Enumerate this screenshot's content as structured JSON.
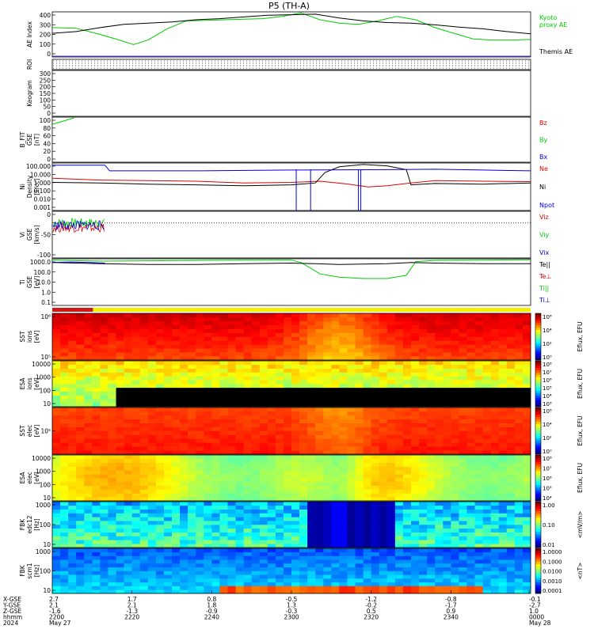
{
  "title": "P5 (TH-A)",
  "colors": {
    "black": "#000000",
    "green": "#00cc00",
    "red": "#dd0000",
    "blue": "#0000dd",
    "bar_red": "#d01818",
    "bar_yellow": "#f4f000"
  },
  "chart_data": [
    {
      "id": "ae",
      "type": "line",
      "ylabel": "AE Index",
      "ylim": [
        0,
        400
      ],
      "yticks": [
        "0",
        "100",
        "200",
        "300",
        "400"
      ],
      "legend": [
        {
          "label": "Kyoto\nproxy AE",
          "color": "#00cc00"
        },
        {
          "label": "Themis AE",
          "color": "#000000"
        }
      ],
      "series": [
        {
          "name": "Kyoto proxy AE",
          "color": "#00cc00",
          "x": [
            0,
            0.05,
            0.1,
            0.14,
            0.17,
            0.2,
            0.24,
            0.28,
            0.32,
            0.36,
            0.4,
            0.44,
            0.48,
            0.52,
            0.56,
            0.6,
            0.64,
            0.68,
            0.72,
            0.76,
            0.8,
            0.84,
            0.88,
            0.92,
            0.96,
            1
          ],
          "y": [
            260,
            255,
            200,
            150,
            110,
            150,
            250,
            320,
            325,
            330,
            335,
            340,
            360,
            390,
            330,
            300,
            290,
            320,
            360,
            330,
            260,
            210,
            160,
            150,
            150,
            155
          ]
        },
        {
          "name": "Themis AE",
          "color": "#000000",
          "x": [
            0,
            0.05,
            0.1,
            0.15,
            0.2,
            0.25,
            0.3,
            0.35,
            0.4,
            0.45,
            0.5,
            0.55,
            0.6,
            0.65,
            0.7,
            0.75,
            0.8,
            0.85,
            0.9,
            0.95,
            1
          ],
          "y": [
            210,
            225,
            260,
            290,
            300,
            310,
            330,
            340,
            355,
            370,
            375,
            380,
            345,
            320,
            305,
            300,
            285,
            265,
            250,
            225,
            205
          ]
        }
      ]
    },
    {
      "id": "roi",
      "type": "table",
      "ylabel": "ROI"
    },
    {
      "id": "keogram",
      "type": "line",
      "ylabel": "Keogram",
      "ylim": [
        0,
        300
      ],
      "yticks": [
        "0",
        "50",
        "100",
        "150",
        "200",
        "250",
        "300"
      ]
    },
    {
      "id": "bfit",
      "type": "line",
      "ylabel": "B_FIT\nGSE\n[nT]",
      "ylim": [
        0,
        100
      ],
      "yticks": [
        "0",
        "20",
        "40",
        "60",
        "80",
        "100"
      ],
      "legend": [
        {
          "label": "Bz",
          "color": "#dd0000"
        },
        {
          "label": "By",
          "color": "#00cc00"
        },
        {
          "label": "Bx",
          "color": "#0000dd"
        }
      ],
      "series": [
        {
          "name": "By",
          "color": "#00cc00",
          "x": [
            0,
            0.045
          ],
          "y": [
            84,
            98
          ]
        }
      ]
    },
    {
      "id": "density",
      "type": "line",
      "ylabel": "Ni\nDensity\n[1/cc]",
      "log": true,
      "ylim": [
        0.001,
        100
      ],
      "yticks": [
        "0.001",
        "0.010",
        "0.100",
        "1.000",
        "10.000",
        "100.000"
      ],
      "legend": [
        {
          "label": "Ne",
          "color": "#dd0000"
        },
        {
          "label": "Ni",
          "color": "#000000"
        },
        {
          "label": "Npot",
          "color": "#0000dd"
        }
      ],
      "series": [
        {
          "name": "Ne",
          "color": "#dd0000",
          "x": [
            0,
            0.1,
            0.2,
            0.3,
            0.4,
            0.5,
            0.56,
            0.62,
            0.66,
            0.7,
            0.75,
            0.8,
            0.9,
            1
          ],
          "y": [
            2.5,
            1.6,
            1.4,
            1.2,
            0.8,
            0.9,
            1.2,
            0.6,
            0.3,
            0.4,
            0.8,
            1.4,
            1.2,
            1.1
          ]
        },
        {
          "name": "Ni",
          "color": "#000000",
          "x": [
            0,
            0.1,
            0.2,
            0.3,
            0.4,
            0.5,
            0.55,
            0.57,
            0.6,
            0.65,
            0.7,
            0.74,
            0.75,
            0.8,
            0.9,
            1
          ],
          "y": [
            0.9,
            0.8,
            0.6,
            0.5,
            0.4,
            0.5,
            0.8,
            10,
            40,
            70,
            50,
            20,
            0.5,
            0.7,
            0.6,
            0.8
          ]
        },
        {
          "name": "Npot",
          "color": "#0000dd",
          "x": [
            0,
            0.11,
            0.12,
            0.3,
            0.5,
            0.7,
            0.8,
            0.9,
            1
          ],
          "y": [
            60,
            60,
            15,
            15,
            18,
            20,
            22,
            18,
            15
          ]
        }
      ]
    },
    {
      "id": "velocity",
      "type": "line",
      "ylabel": "Vi\nGSE\n[km/s]",
      "ylim": [
        -150,
        50
      ],
      "yticks": [
        "-100",
        "-50",
        "0"
      ],
      "legend": [
        {
          "label": "Viz",
          "color": "#dd0000"
        },
        {
          "label": "Viy",
          "color": "#00cc00"
        },
        {
          "label": "Vix",
          "color": "#0000dd"
        }
      ]
    },
    {
      "id": "temperature",
      "type": "line",
      "ylabel": "Ti\nGSE\n[eV]",
      "log": true,
      "ylim": [
        0.1,
        2000
      ],
      "yticks": [
        "0.1",
        "1.0",
        "10.0",
        "100.0",
        "1000.0"
      ],
      "legend": [
        {
          "label": "Te||",
          "color": "#000000"
        },
        {
          "label": "Te⊥",
          "color": "#dd0000"
        },
        {
          "label": "Ti||",
          "color": "#00cc00"
        },
        {
          "label": "Ti⊥",
          "color": "#0000dd"
        }
      ],
      "series": [
        {
          "name": "Ti||",
          "color": "#00cc00",
          "x": [
            0,
            0.1,
            0.2,
            0.3,
            0.4,
            0.5,
            0.52,
            0.56,
            0.6,
            0.65,
            0.7,
            0.74,
            0.76,
            0.8,
            0.9,
            1
          ],
          "y": [
            1500,
            1200,
            1300,
            1400,
            1500,
            1500,
            900,
            80,
            40,
            30,
            30,
            60,
            1100,
            1400,
            1500,
            1600
          ]
        },
        {
          "name": "Te||",
          "color": "#000000",
          "x": [
            0,
            0.1,
            0.2,
            0.3,
            0.4,
            0.5,
            0.55,
            0.6,
            0.7,
            0.75,
            0.8,
            0.9,
            1
          ],
          "y": [
            900,
            700,
            600,
            600,
            700,
            800,
            700,
            600,
            700,
            900,
            800,
            700,
            700
          ]
        },
        {
          "name": "Ti⊥",
          "color": "#0000dd",
          "x": [
            0,
            0.04,
            0.08,
            0.11
          ],
          "y": [
            900,
            1000,
            900,
            800
          ]
        }
      ]
    },
    {
      "id": "sst_ion",
      "type": "heatmap",
      "ylabel": "SST\nions\n[eV]",
      "yticks": [
        "10^5",
        "10^6"
      ],
      "colorbar_label": "Eflux, EFU",
      "colorbar_ticks": [
        "10^0",
        "10^2",
        "10^4",
        "10^6"
      ]
    },
    {
      "id": "esa_ion",
      "type": "heatmap",
      "ylabel": "ESA\nions\n[eV]",
      "yticks": [
        "10",
        "100",
        "1000",
        "10000"
      ],
      "colorbar_label": "Eflux, EFU",
      "colorbar_ticks": [
        "10^3",
        "10^4",
        "10^5",
        "10^6",
        "10^7",
        "10^8"
      ]
    },
    {
      "id": "sst_elec",
      "type": "heatmap",
      "ylabel": "SST\nelec\n[eV]",
      "yticks": [
        "10^5"
      ],
      "colorbar_label": "Eflux, EFU",
      "colorbar_ticks": [
        "10^0",
        "10^2",
        "10^4",
        "10^6"
      ]
    },
    {
      "id": "esa_elec",
      "type": "heatmap",
      "ylabel": "ESA\nelec\n[eV]",
      "yticks": [
        "10",
        "100",
        "1000",
        "10000"
      ],
      "colorbar_label": "Eflux, EFU",
      "colorbar_ticks": [
        "10^4",
        "10^5",
        "10^6",
        "10^7",
        "10^8"
      ]
    },
    {
      "id": "fbk_e",
      "type": "heatmap",
      "ylabel": "FBK\nedc12\n[Hz]",
      "yticks": [
        "10",
        "100",
        "1000"
      ],
      "colorbar_label": "<mV/m>",
      "colorbar_ticks": [
        "0.01",
        "0.10",
        "1.00"
      ]
    },
    {
      "id": "fbk_b",
      "type": "heatmap",
      "ylabel": "FBK\nscm1\n[Hz]",
      "yticks": [
        "10",
        "100",
        "1000"
      ],
      "colorbar_label": "<nT>",
      "colorbar_ticks": [
        "0.0001",
        "0.0010",
        "0.0100",
        "0.1000",
        "1.0000"
      ]
    }
  ],
  "x_axis": {
    "row_labels": [
      "X-GSE",
      "Y-GSE",
      "Z-GSE",
      "hhmm",
      "2024"
    ],
    "ticks": [
      {
        "t": 0.0,
        "labels": [
          "2.7",
          "2.1",
          "-1.6",
          "2200",
          "May 27"
        ]
      },
      {
        "t": 0.2,
        "labels": [
          "1.7",
          "2.1",
          "-1.3",
          "2220",
          ""
        ]
      },
      {
        "t": 0.4,
        "labels": [
          "0.8",
          "1.8",
          "-0.9",
          "2240",
          ""
        ]
      },
      {
        "t": 0.6,
        "labels": [
          "-0.5",
          "1.3",
          "-0.3",
          "2300",
          ""
        ]
      },
      {
        "t": 0.8,
        "labels": [
          "-1.2",
          "-0.2",
          "0.5",
          "2320",
          ""
        ]
      },
      {
        "t": 1.0,
        "labels": [
          "-0.8",
          "-1.7",
          "0.9",
          "2340",
          ""
        ]
      },
      {
        "t": 1.2,
        "labels": [
          "-0.1",
          "-2.7",
          "1.0",
          "0000",
          "May 28"
        ]
      }
    ]
  }
}
